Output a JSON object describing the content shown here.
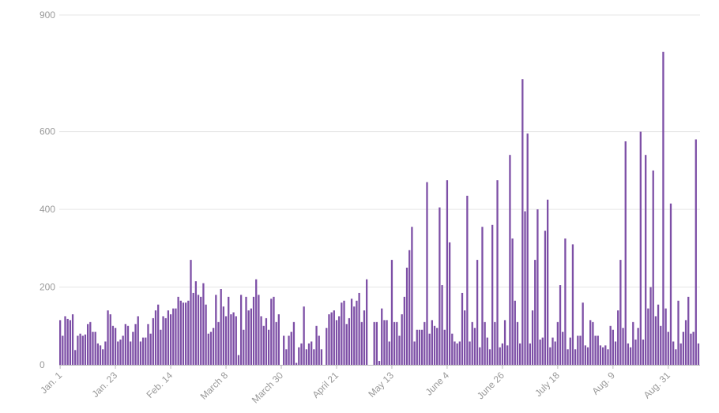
{
  "chart_data": {
    "type": "bar",
    "title": "",
    "xlabel": "",
    "ylabel": "",
    "ylim": [
      0,
      900
    ],
    "y_ticks": [
      0,
      200,
      400,
      600,
      900
    ],
    "grid": true,
    "bar_color": "#7d4fa6",
    "x_ticks": [
      {
        "label": "Jan. 1",
        "index": 0
      },
      {
        "label": "Jan. 23",
        "index": 22
      },
      {
        "label": "Feb. 14",
        "index": 44
      },
      {
        "label": "March 8",
        "index": 66
      },
      {
        "label": "March 30",
        "index": 88
      },
      {
        "label": "April 21",
        "index": 110
      },
      {
        "label": "May 13",
        "index": 132
      },
      {
        "label": "June 4",
        "index": 154
      },
      {
        "label": "June 26",
        "index": 176
      },
      {
        "label": "July 18",
        "index": 198
      },
      {
        "label": "Aug. 9",
        "index": 220
      },
      {
        "label": "Aug. 31",
        "index": 242
      }
    ],
    "values": [
      115,
      75,
      125,
      118,
      115,
      130,
      38,
      75,
      80,
      75,
      78,
      105,
      110,
      85,
      85,
      55,
      50,
      40,
      60,
      140,
      130,
      100,
      95,
      60,
      65,
      75,
      105,
      100,
      60,
      85,
      105,
      125,
      60,
      70,
      70,
      105,
      80,
      120,
      140,
      155,
      90,
      125,
      120,
      140,
      130,
      145,
      145,
      175,
      165,
      160,
      160,
      165,
      270,
      185,
      215,
      180,
      175,
      210,
      155,
      80,
      85,
      95,
      180,
      110,
      195,
      150,
      125,
      175,
      130,
      135,
      125,
      25,
      180,
      90,
      175,
      140,
      145,
      175,
      220,
      180,
      125,
      100,
      120,
      90,
      170,
      175,
      110,
      130,
      0,
      75,
      40,
      75,
      85,
      110,
      5,
      45,
      55,
      150,
      40,
      55,
      60,
      40,
      100,
      75,
      40,
      0,
      95,
      130,
      135,
      140,
      115,
      125,
      160,
      165,
      105,
      120,
      170,
      150,
      165,
      185,
      110,
      140,
      220,
      0,
      0,
      110,
      110,
      10,
      145,
      115,
      115,
      60,
      270,
      110,
      110,
      75,
      130,
      175,
      250,
      295,
      355,
      60,
      90,
      90,
      90,
      110,
      470,
      80,
      115,
      100,
      95,
      405,
      205,
      90,
      475,
      315,
      80,
      60,
      55,
      60,
      185,
      140,
      435,
      60,
      110,
      95,
      270,
      45,
      355,
      110,
      70,
      40,
      360,
      110,
      475,
      45,
      55,
      115,
      50,
      540,
      325,
      165,
      110,
      55,
      735,
      395,
      595,
      55,
      140,
      270,
      400,
      65,
      70,
      345,
      425,
      45,
      70,
      60,
      110,
      205,
      85,
      325,
      40,
      70,
      310,
      40,
      75,
      75,
      160,
      50,
      45,
      115,
      110,
      75,
      75,
      50,
      45,
      50,
      40,
      100,
      90,
      60,
      140,
      270,
      95,
      575,
      55,
      45,
      110,
      65,
      95,
      600,
      65,
      540,
      145,
      200,
      500,
      125,
      155,
      100,
      805,
      145,
      85,
      415,
      60,
      40,
      165,
      55,
      85,
      115,
      175,
      80,
      85,
      580,
      55
    ]
  }
}
